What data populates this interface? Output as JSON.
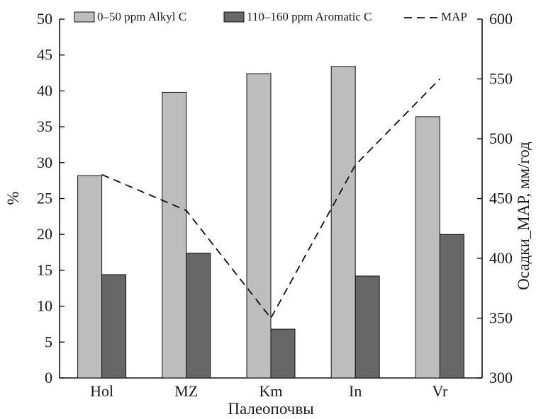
{
  "chart_data": {
    "type": "bar",
    "categories": [
      "Hol",
      "MZ",
      "Km",
      "In",
      "Vr"
    ],
    "series": [
      {
        "name": "0–50 ppm Alkyl C",
        "type": "bar",
        "axis": "left",
        "color": "#bdbdbd",
        "values": [
          28.2,
          39.8,
          42.4,
          43.4,
          36.4
        ]
      },
      {
        "name": "110–160 ppm Aromatic C",
        "type": "bar",
        "axis": "left",
        "color": "#676767",
        "values": [
          14.4,
          17.4,
          6.8,
          14.2,
          20.0
        ]
      },
      {
        "name": "MAP",
        "type": "line",
        "axis": "right",
        "color": "#111111",
        "style": "dashed",
        "values": [
          470,
          440,
          350,
          478,
          550
        ]
      }
    ],
    "xlabel": "Палеопочвы",
    "ylabel": "%",
    "y2label": "Осадки_MAP, мм/год",
    "ylim": [
      0,
      50
    ],
    "y2lim": [
      300,
      600
    ],
    "yticks": [
      "0",
      "5",
      "10",
      "15",
      "20",
      "25",
      "30",
      "35",
      "40",
      "45",
      "50"
    ],
    "y2ticks": [
      "300",
      "350",
      "400",
      "450",
      "500",
      "550",
      "600"
    ],
    "legend_position": "top",
    "grid": false
  }
}
